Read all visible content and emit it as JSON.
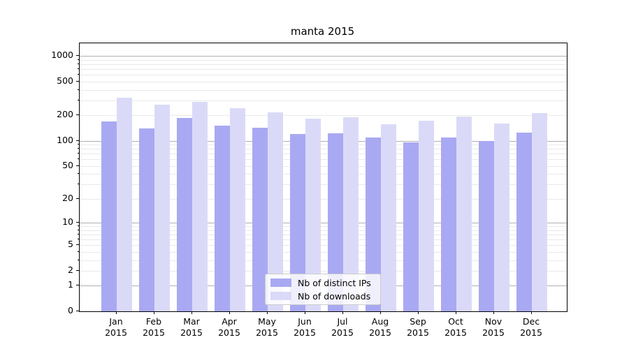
{
  "title": "manta 2015",
  "legend": {
    "items": [
      {
        "label": "Nb of distinct IPs",
        "color": "#a9a9f3"
      },
      {
        "label": "Nb of downloads",
        "color": "#dadaf8"
      }
    ]
  },
  "colors": {
    "bar_dark": "#a9a9f3",
    "bar_light": "#dadaf8",
    "major_grid": "#b0b0b0",
    "minor_grid": "#e9e9e9",
    "axis": "#000000",
    "legend_border": "#cccccc"
  },
  "chart_data": {
    "type": "bar",
    "title": "manta 2015",
    "scale": "log10(1+x)",
    "grid": true,
    "legend_position": "inside bottom-center",
    "categories": [
      "Jan 2015",
      "Feb 2015",
      "Mar 2015",
      "Apr 2015",
      "May 2015",
      "Jun 2015",
      "Jul 2015",
      "Aug 2015",
      "Sep 2015",
      "Oct 2015",
      "Nov 2015",
      "Dec 2015"
    ],
    "series": [
      {
        "name": "Nb of distinct IPs",
        "color": "#a9a9f3",
        "values": [
          168,
          140,
          185,
          150,
          142,
          120,
          122,
          109,
          95,
          110,
          100,
          125
        ]
      },
      {
        "name": "Nb of downloads",
        "color": "#dadaf8",
        "values": [
          320,
          266,
          288,
          242,
          216,
          181,
          188,
          157,
          172,
          194,
          159,
          213
        ]
      }
    ],
    "yticks": [
      0,
      1,
      2,
      5,
      10,
      20,
      50,
      100,
      200,
      500,
      1000
    ],
    "ytick_labels": [
      "0",
      "1",
      "2",
      "5",
      "10",
      "20",
      "50",
      "100",
      "200",
      "500",
      "1000"
    ],
    "major_gridlines": [
      1,
      10,
      100,
      1000
    ],
    "minor_gridlines": [
      2,
      3,
      4,
      5,
      6,
      7,
      8,
      9,
      20,
      30,
      40,
      50,
      60,
      70,
      80,
      90,
      200,
      300,
      400,
      500,
      600,
      700,
      800,
      900
    ],
    "ylim": [
      0,
      1410
    ],
    "xlabel": "",
    "ylabel": ""
  }
}
